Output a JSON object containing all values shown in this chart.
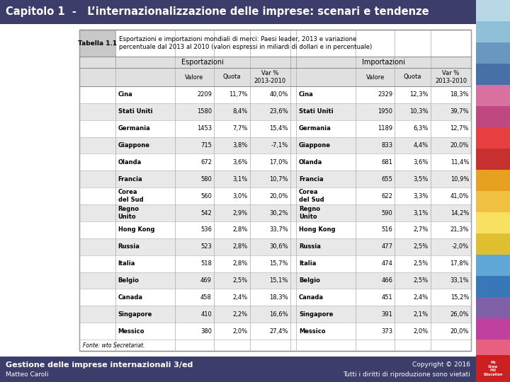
{
  "title": "Capitolo 1  -   L’internazionalizzazione delle imprese: scenari e tendenze",
  "title_bg": "#3d3d6b",
  "title_color": "#ffffff",
  "tabella_label": "Tabella 1.1",
  "tabella_desc": "Esportazioni e importazioni mondiali di merci: Paesi leader, 2013 e variazione\npercentuale dal 2013 al 2010 (valori espressi in miliardi di dollari e in percentuale)",
  "col_headers_exp": [
    "Valore",
    "Quota",
    "Var %\n2013-2010"
  ],
  "col_headers_imp": [
    "Valore",
    "Quota",
    "Var %\n2013-2010"
  ],
  "group_headers": [
    "Esportazioni",
    "Importazioni"
  ],
  "rows": [
    [
      "Cina",
      "2209",
      "11,7%",
      "40,0%",
      "Cina",
      "2329",
      "12,3%",
      "18,3%"
    ],
    [
      "Stati Uniti",
      "1580",
      "8,4%",
      "23,6%",
      "Stati Uniti",
      "1950",
      "10,3%",
      "39,7%"
    ],
    [
      "Germania",
      "1453",
      "7,7%",
      "15,4%",
      "Germania",
      "1189",
      "6,3%",
      "12,7%"
    ],
    [
      "Giappone",
      "715",
      "3,8%",
      "-7,1%",
      "Giappone",
      "833",
      "4,4%",
      "20,0%"
    ],
    [
      "Olanda",
      "672",
      "3,6%",
      "17,0%",
      "Olanda",
      "681",
      "3,6%",
      "11,4%"
    ],
    [
      "Francia",
      "580",
      "3,1%",
      "10,7%",
      "Francia",
      "655",
      "3,5%",
      "10,9%"
    ],
    [
      "Corea\ndel Sud",
      "560",
      "3,0%",
      "20,0%",
      "Corea\ndel Sud",
      "622",
      "3,3%",
      "41,0%"
    ],
    [
      "Regno\nUnito",
      "542",
      "2,9%",
      "30,2%",
      "Regno\nUnito",
      "590",
      "3,1%",
      "14,2%"
    ],
    [
      "Hong Kong",
      "536",
      "2,8%",
      "33,7%",
      "Hong Kong",
      "516",
      "2,7%",
      "21,3%"
    ],
    [
      "Russia",
      "523",
      "2,8%",
      "30,6%",
      "Russia",
      "477",
      "2,5%",
      "-2,0%"
    ],
    [
      "Italia",
      "518",
      "2,8%",
      "15,7%",
      "Italia",
      "474",
      "2,5%",
      "17,8%"
    ],
    [
      "Belgio",
      "469",
      "2,5%",
      "15,1%",
      "Belgio",
      "466",
      "2,5%",
      "33,1%"
    ],
    [
      "Canada",
      "458",
      "2,4%",
      "18,3%",
      "Canada",
      "451",
      "2,4%",
      "15,2%"
    ],
    [
      "Singapore",
      "410",
      "2,2%",
      "16,6%",
      "Singapore",
      "391",
      "2,1%",
      "26,0%"
    ],
    [
      "Messico",
      "380",
      "2,0%",
      "27,4%",
      "Messico",
      "373",
      "2,0%",
      "20,0%"
    ]
  ],
  "fonte": "Fonte: wto Secretariat.",
  "footer_left": "Gestione delle imprese internazionali 3/ed",
  "footer_left2": "Matteo Caroli",
  "footer_right": "Copyright © 2016",
  "footer_right2": "Tutti i diritti di riproduzione sono vietati",
  "footer_bg": "#3d3d6b",
  "header_gray": "#c8c8c8",
  "subheader_gray": "#e0e0e0",
  "row_colors": [
    "#ffffff",
    "#e8e8e8"
  ],
  "border_color": "#999999",
  "sidebar_colors": [
    "#b8d8e8",
    "#90c0d8",
    "#6898c0",
    "#4870a8",
    "#d870a0",
    "#c04880",
    "#e84040",
    "#c83030",
    "#e8a020",
    "#f0c040",
    "#f8e060",
    "#e0c030",
    "#60a8d8",
    "#3878b8",
    "#8060a8",
    "#c040a0",
    "#e86080",
    "#f090a0"
  ]
}
